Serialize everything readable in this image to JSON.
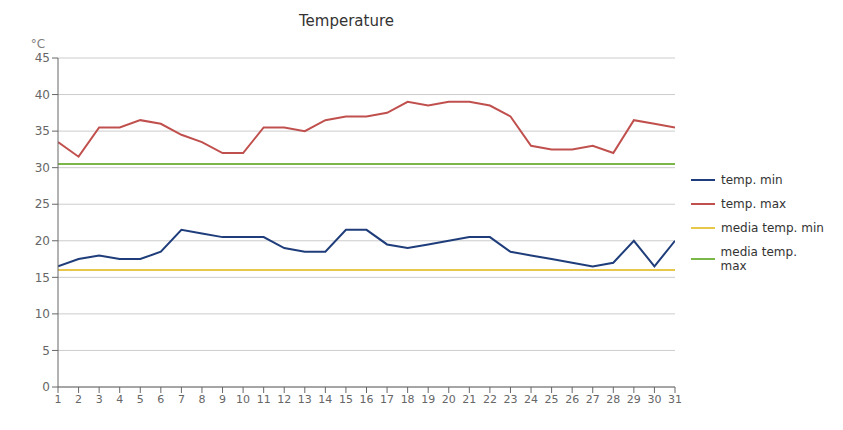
{
  "chart_data": {
    "type": "line",
    "title": "Temperature",
    "ylabel": "°C",
    "x": [
      1,
      2,
      3,
      4,
      5,
      6,
      7,
      8,
      9,
      10,
      11,
      12,
      13,
      14,
      15,
      16,
      17,
      18,
      19,
      20,
      21,
      22,
      23,
      24,
      25,
      26,
      27,
      28,
      29,
      30,
      31
    ],
    "xlim": [
      1,
      31
    ],
    "xticks": [
      1,
      2,
      3,
      4,
      5,
      6,
      7,
      8,
      9,
      10,
      11,
      12,
      13,
      14,
      15,
      16,
      17,
      18,
      19,
      20,
      21,
      22,
      23,
      24,
      25,
      26,
      27,
      28,
      29,
      30,
      31
    ],
    "series": [
      {
        "name": "temp. min",
        "color": "#1f3d7a",
        "values": [
          16.5,
          17.5,
          18.0,
          17.5,
          17.5,
          18.5,
          21.5,
          21.0,
          20.5,
          20.5,
          20.5,
          19.0,
          18.5,
          18.5,
          21.5,
          21.5,
          19.5,
          19.0,
          19.5,
          20.0,
          20.5,
          20.5,
          18.5,
          18.0,
          17.5,
          17.0,
          16.5,
          17.0,
          20.0,
          16.5,
          20.0
        ]
      },
      {
        "name": "temp. max",
        "color": "#c0504d",
        "values": [
          33.5,
          31.5,
          35.5,
          35.5,
          36.5,
          36.0,
          34.5,
          33.5,
          32.0,
          32.0,
          35.5,
          35.5,
          35.0,
          36.5,
          37.0,
          37.0,
          37.5,
          39.0,
          38.5,
          39.0,
          39.0,
          38.5,
          37.0,
          33.0,
          32.5,
          32.5,
          33.0,
          32.0,
          36.5,
          36.0,
          35.5
        ]
      },
      {
        "name": "media temp. min",
        "color": "#e8c84a",
        "type": "hline",
        "value": 16.0
      },
      {
        "name": "media temp. max",
        "color": "#7ab648",
        "type": "hline",
        "value": 30.5
      }
    ],
    "ylim": [
      0,
      45
    ],
    "yticks": [
      0,
      5,
      10,
      15,
      20,
      25,
      30,
      35,
      40,
      45
    ],
    "grid": "y",
    "legend": "right"
  }
}
